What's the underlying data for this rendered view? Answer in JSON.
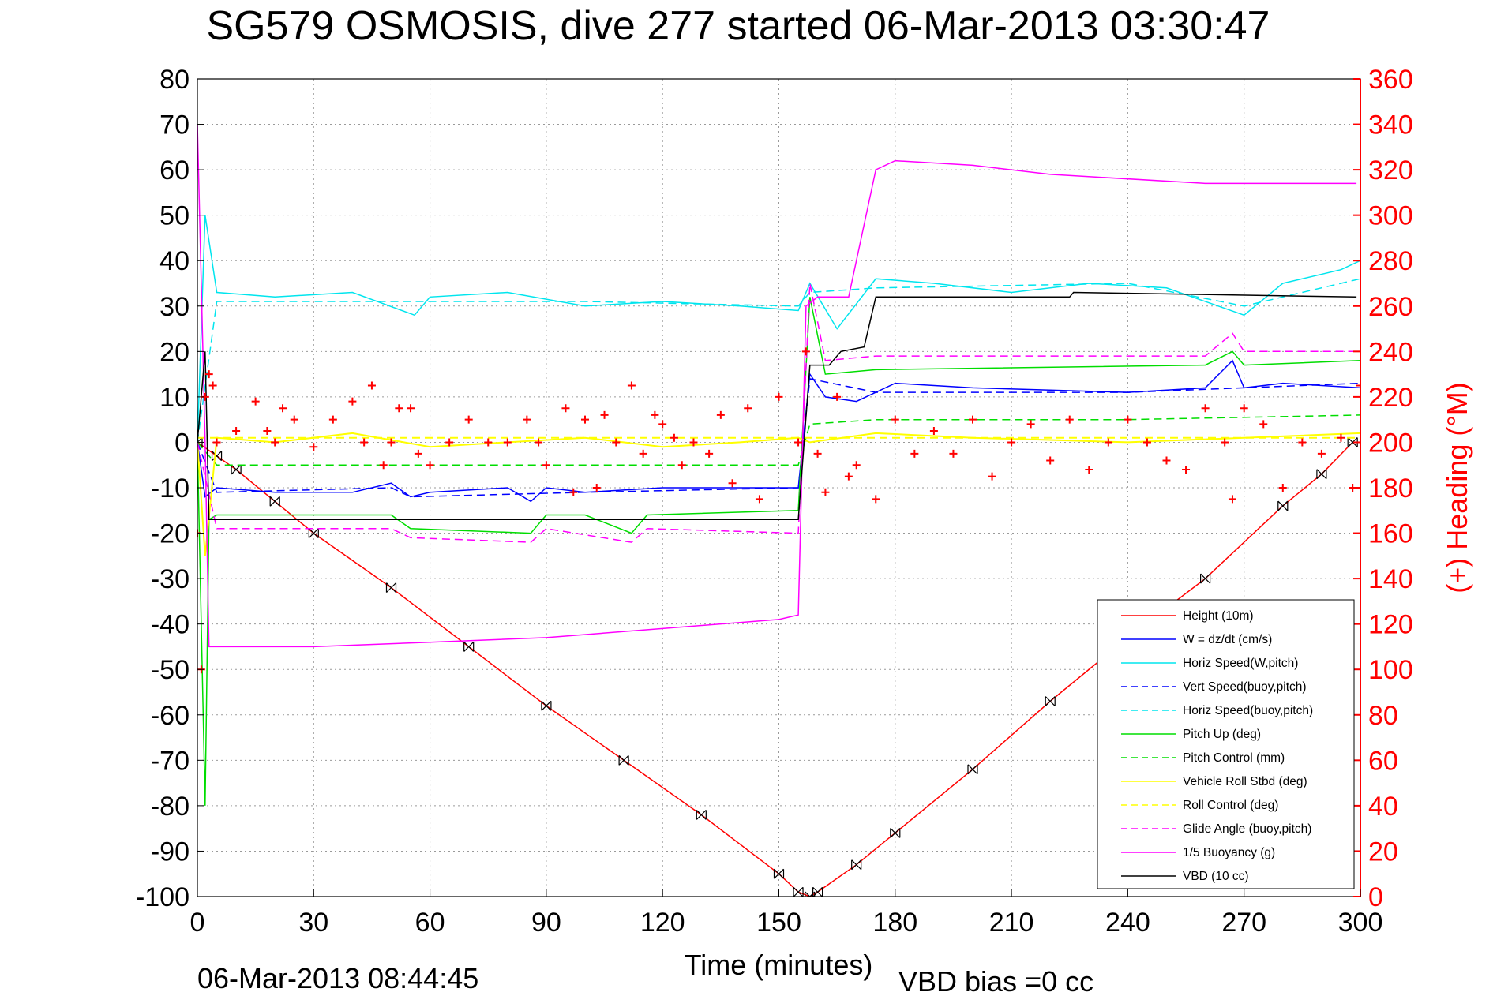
{
  "chart_data": {
    "type": "line",
    "title": "SG579 OSMOSIS, dive 277 started 06-Mar-2013 03:30:47",
    "xlabel": "Time (minutes)",
    "ylabel_right": "(+) Heading (°M)",
    "footer_left": "06-Mar-2013 08:44:45",
    "footer_right": "VBD bias =0 cc",
    "xlim": [
      0,
      300
    ],
    "ylim": [
      -100,
      80
    ],
    "ylim_right": [
      0,
      360
    ],
    "xticks": [
      "0",
      "30",
      "60",
      "90",
      "120",
      "150",
      "180",
      "210",
      "240",
      "270",
      "300"
    ],
    "yticks": [
      "80",
      "70",
      "60",
      "50",
      "40",
      "30",
      "20",
      "10",
      "0",
      "-10",
      "-20",
      "-30",
      "-40",
      "-50",
      "-60",
      "-70",
      "-80",
      "-90",
      "-100"
    ],
    "yticks_right": [
      "360",
      "340",
      "320",
      "300",
      "280",
      "260",
      "240",
      "220",
      "200",
      "180",
      "160",
      "140",
      "120",
      "100",
      "80",
      "60",
      "40",
      "20",
      "0"
    ],
    "grid": true,
    "legend_position": "bottom-right",
    "series": [
      {
        "name": "Height (10m)",
        "color": "#ff0000",
        "style": "solid",
        "x": [
          0,
          5,
          10,
          20,
          30,
          50,
          70,
          90,
          110,
          130,
          150,
          155,
          158,
          160,
          170,
          180,
          200,
          220,
          240,
          260,
          280,
          290,
          298
        ],
        "y": [
          0,
          -3,
          -6,
          -13,
          -20,
          -32,
          -45,
          -58,
          -70,
          -82,
          -95,
          -99,
          -100,
          -99,
          -93,
          -86,
          -72,
          -57,
          -43,
          -30,
          -14,
          -7,
          0
        ]
      },
      {
        "name": "W = dz/dt (cm/s)",
        "color": "#0000ff",
        "style": "solid",
        "x": [
          0,
          2,
          5,
          20,
          40,
          50,
          55,
          60,
          80,
          86,
          90,
          100,
          120,
          140,
          155,
          158,
          162,
          170,
          180,
          200,
          240,
          260,
          267,
          270,
          280,
          300
        ],
        "y": [
          0,
          -12,
          -10,
          -11,
          -11,
          -9,
          -12,
          -11,
          -10,
          -13,
          -10,
          -11,
          -10,
          -10,
          -10,
          15,
          10,
          9,
          13,
          12,
          11,
          12,
          18,
          12,
          13,
          12
        ]
      },
      {
        "name": "Horiz Speed(W,pitch)",
        "color": "#00e5ee",
        "style": "solid",
        "x": [
          0,
          2,
          5,
          20,
          40,
          56,
          60,
          80,
          100,
          120,
          140,
          155,
          158,
          165,
          175,
          190,
          210,
          230,
          250,
          270,
          280,
          295,
          300
        ],
        "y": [
          0,
          50,
          33,
          32,
          33,
          28,
          32,
          33,
          30,
          31,
          30,
          29,
          35,
          25,
          36,
          35,
          33,
          35,
          34,
          28,
          35,
          38,
          40
        ]
      },
      {
        "name": "Vert Speed(buoy,pitch)",
        "color": "#0000ff",
        "style": "dashed",
        "x": [
          0,
          5,
          50,
          55,
          100,
          155,
          158,
          175,
          240,
          270,
          300
        ],
        "y": [
          0,
          -11,
          -10,
          -12,
          -11,
          -10,
          14,
          11,
          11,
          12,
          13
        ]
      },
      {
        "name": "Horiz Speed(buoy,pitch)",
        "color": "#00e5ee",
        "style": "dashed",
        "x": [
          0,
          5,
          50,
          100,
          155,
          158,
          175,
          240,
          270,
          300
        ],
        "y": [
          0,
          31,
          31,
          31,
          30,
          33,
          34,
          35,
          30,
          36
        ]
      },
      {
        "name": "Pitch Up (deg)",
        "color": "#00dd00",
        "style": "solid",
        "x": [
          0,
          2,
          3,
          5,
          50,
          55,
          86,
          90,
          100,
          112,
          116,
          155,
          158,
          162,
          175,
          260,
          267,
          270,
          300
        ],
        "y": [
          0,
          -80,
          -17,
          -16,
          -16,
          -19,
          -20,
          -16,
          -16,
          -20,
          -16,
          -15,
          32,
          15,
          16,
          17,
          20,
          17,
          18
        ]
      },
      {
        "name": "Pitch Control (mm)",
        "color": "#00dd00",
        "style": "dashed",
        "x": [
          0,
          5,
          50,
          100,
          155,
          158,
          175,
          240,
          300
        ],
        "y": [
          0,
          -5,
          -5,
          -5,
          -5,
          4,
          5,
          5,
          6
        ]
      },
      {
        "name": "Vehicle Roll Stbd (deg)",
        "color": "#ffff00",
        "style": "solid",
        "x": [
          0,
          2,
          5,
          20,
          40,
          60,
          80,
          100,
          120,
          140,
          155,
          158,
          175,
          200,
          240,
          270,
          300
        ],
        "y": [
          0,
          -25,
          1,
          0,
          2,
          -1,
          0,
          1,
          -1,
          0,
          1,
          0,
          2,
          1,
          0,
          1,
          2
        ]
      },
      {
        "name": "Roll Control (deg)",
        "color": "#ffff00",
        "style": "dashed",
        "x": [
          0,
          300
        ],
        "y": [
          1,
          1
        ]
      },
      {
        "name": "Glide Angle (buoy,pitch)",
        "color": "#ff00ff",
        "style": "dashed",
        "x": [
          0,
          5,
          50,
          55,
          86,
          90,
          112,
          116,
          155,
          158,
          162,
          175,
          260,
          267,
          270,
          300
        ],
        "y": [
          0,
          -19,
          -19,
          -21,
          -22,
          -19,
          -22,
          -19,
          -20,
          35,
          18,
          19,
          19,
          24,
          20,
          20
        ]
      },
      {
        "name": "1/5 Buoyancy (g)",
        "color": "#ff00ff",
        "style": "solid",
        "x": [
          0,
          2,
          3,
          30,
          60,
          90,
          120,
          150,
          155,
          157,
          160,
          168,
          170,
          175,
          180,
          200,
          220,
          260,
          299
        ],
        "y": [
          70,
          0,
          -45,
          -45,
          -44,
          -43,
          -41,
          -39,
          -38,
          30,
          32,
          32,
          40,
          60,
          62,
          61,
          59,
          57,
          57
        ]
      },
      {
        "name": "VBD (10 cc)",
        "color": "#000000",
        "style": "solid",
        "x": [
          0,
          2,
          3,
          155,
          158,
          163,
          166,
          172,
          175,
          176,
          225,
          226,
          299
        ],
        "y": [
          0,
          20,
          -17,
          -17,
          17,
          17,
          20,
          21,
          32,
          32,
          32,
          33,
          32
        ]
      },
      {
        "name": "Heading (°M)",
        "color": "#ff0000",
        "style": "markers-plus",
        "axis": "right",
        "x": [
          0,
          1,
          2,
          3,
          4,
          5,
          10,
          15,
          18,
          20,
          22,
          25,
          30,
          35,
          40,
          43,
          45,
          48,
          50,
          52,
          55,
          57,
          60,
          65,
          70,
          75,
          80,
          85,
          88,
          90,
          95,
          97,
          100,
          103,
          105,
          108,
          112,
          115,
          118,
          120,
          123,
          125,
          128,
          132,
          135,
          138,
          142,
          145,
          150,
          155,
          157,
          160,
          162,
          165,
          168,
          170,
          175,
          180,
          185,
          190,
          195,
          200,
          205,
          210,
          215,
          220,
          225,
          230,
          235,
          240,
          245,
          250,
          255,
          260,
          265,
          267,
          270,
          275,
          280,
          285,
          290,
          295,
          298,
          300
        ],
        "y": [
          160,
          100,
          220,
          230,
          225,
          200,
          205,
          218,
          205,
          200,
          215,
          210,
          198,
          210,
          218,
          200,
          225,
          190,
          200,
          215,
          215,
          195,
          190,
          200,
          210,
          200,
          200,
          210,
          200,
          190,
          215,
          178,
          210,
          180,
          212,
          200,
          225,
          195,
          212,
          208,
          202,
          190,
          200,
          195,
          212,
          182,
          215,
          175,
          220,
          200,
          240,
          195,
          178,
          220,
          185,
          190,
          175,
          210,
          195,
          205,
          195,
          210,
          185,
          200,
          208,
          192,
          210,
          188,
          200,
          210,
          200,
          192,
          188,
          215,
          200,
          175,
          215,
          208,
          180,
          200,
          195,
          202,
          180,
          225
        ]
      }
    ]
  }
}
